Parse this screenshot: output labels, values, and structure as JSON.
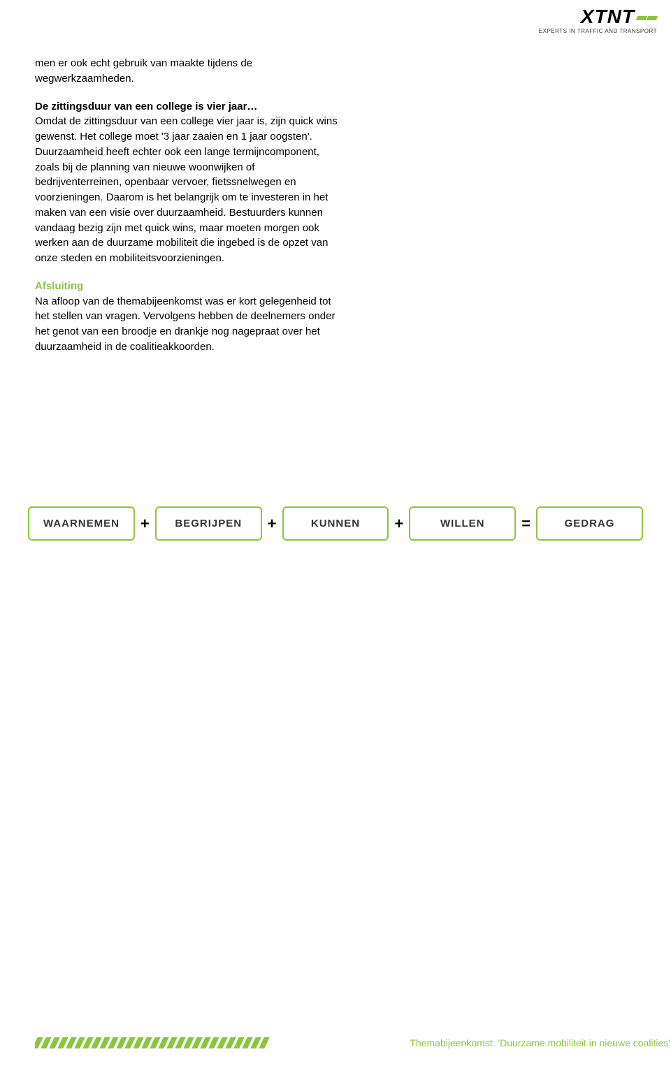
{
  "logo": {
    "text": "XTNT",
    "tagline": "EXPERTS IN TRAFFIC AND TRANSPORT",
    "stripe_color": "#8bc53f"
  },
  "body": {
    "p1": "men er ook echt gebruik van maakte tijdens de wegwerkzaamheden.",
    "h1": "De zittingsduur van een college is vier jaar…",
    "p2": "Omdat de zittingsduur van een college vier jaar is, zijn quick wins gewenst. Het college moet '3 jaar zaaien en 1 jaar oogsten'. Duurzaamheid heeft echter ook een lange termijncomponent, zoals bij de planning van nieuwe woonwijken of bedrijventerreinen, openbaar vervoer, fietssnelwegen en voorzieningen. Daarom is het belangrijk om te investeren in het maken van een visie over duurzaamheid. Bestuurders kunnen vandaag bezig zijn met quick wins, maar moeten morgen ook werken aan de duurzame mobiliteit die ingebed is de opzet van onze steden en mobiliteitsvoorzieningen.",
    "h2": "Afsluiting",
    "p3": "Na afloop van de themabijeenkomst was er kort gelegenheid tot het stellen van vragen. Vervolgens hebben de deelnemers onder het genot van een broodje en drankje nog nagepraat over het duurzaamheid in de coalitieakkoorden."
  },
  "equation": {
    "boxes": [
      "WAARNEMEN",
      "BEGRIJPEN",
      "KUNNEN",
      "WILLEN",
      "GEDRAG"
    ],
    "ops": [
      "+",
      "+",
      "+",
      "=",
      ""
    ],
    "border_color": "#8bc53f",
    "box_fontsize": 15,
    "op_fontsize": 22,
    "text_color": "#333333"
  },
  "footer": {
    "stripe_count": 28,
    "stripe_color": "#8bc53f",
    "text": "Themabijeenkomst: 'Duurzame mobiliteit in nieuwe coalities'",
    "text_color": "#8bc53f"
  }
}
